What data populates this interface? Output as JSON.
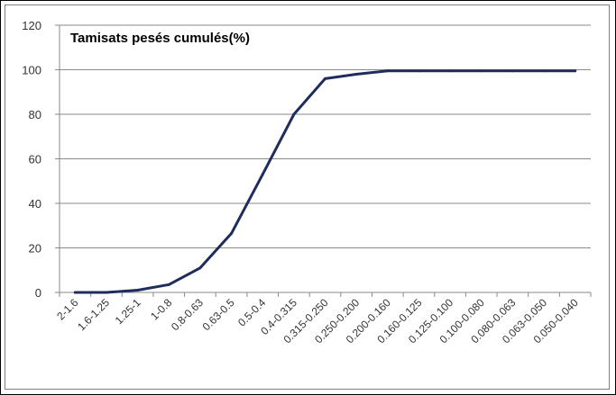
{
  "chart_data": {
    "type": "line",
    "title": "Tamisats pesés cumulés(%)",
    "xlabel": "",
    "ylabel": "",
    "ylim": [
      0,
      120
    ],
    "yticks": [
      "0",
      "20",
      "40",
      "60",
      "80",
      "100",
      "120"
    ],
    "grid": "horizontal",
    "legend": "none",
    "line_color": "#1f2d5c",
    "categories": [
      "2-1.6",
      "1.6-1.25",
      "1.25-1",
      "1-0.8",
      "0.8-0.63",
      "0.63-0.5",
      "0.5-0.4",
      "0.4-0.315",
      "0.315-0.250",
      "0.250-0.200",
      "0.200-0.160",
      "0.160-0.125",
      "0.125-0.100",
      "0.100-0.080",
      "0.080-0.063",
      "0.063-0.050",
      "0.050-0.040"
    ],
    "series": [
      {
        "values": [
          0,
          0,
          1,
          3.5,
          11,
          26.5,
          53,
          80,
          96,
          98,
          99.5,
          99.5,
          99.5,
          99.5,
          99.5,
          99.5,
          99.5
        ]
      }
    ]
  }
}
